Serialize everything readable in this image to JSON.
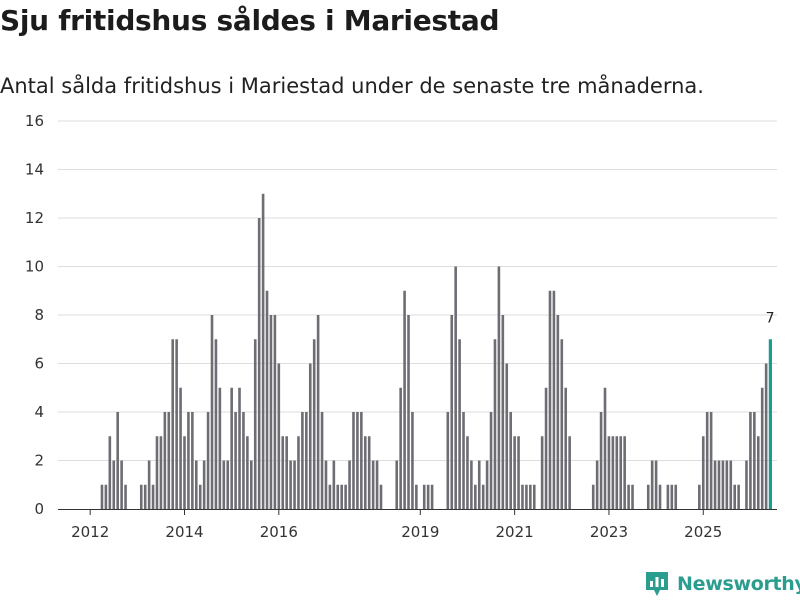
{
  "title": "Sju fritidshus såldes i Mariestad",
  "subtitle": "Antal sålda fritidshus i Mariestad under de senaste tre månaderna.",
  "brand": "Newsworthy",
  "colors": {
    "bar": "#6e6d74",
    "highlight": "#1d9a8c",
    "grid": "#dddddd",
    "axis": "#333333",
    "brand": "#2a9d8f"
  },
  "chart_data": {
    "type": "bar",
    "title": "Sju fritidshus såldes i Mariestad",
    "subtitle": "Antal sålda fritidshus i Mariestad under de senaste tre månaderna.",
    "xlabel": "",
    "ylabel": "",
    "ylim": [
      0,
      16
    ],
    "yticks": [
      0,
      2,
      4,
      6,
      8,
      10,
      12,
      14,
      16
    ],
    "x_start": "2011-07",
    "x_frequency": "monthly",
    "xtick_labels": [
      {
        "label": "2012",
        "month_index": 6
      },
      {
        "label": "2014",
        "month_index": 30
      },
      {
        "label": "2016",
        "month_index": 54
      },
      {
        "label": "2019",
        "month_index": 90
      },
      {
        "label": "2021",
        "month_index": 114
      },
      {
        "label": "2023",
        "month_index": 138
      },
      {
        "label": "2025",
        "month_index": 162
      }
    ],
    "values": [
      0,
      0,
      0,
      0,
      0,
      0,
      0,
      0,
      0,
      1,
      1,
      3,
      2,
      4,
      2,
      1,
      0,
      0,
      0,
      1,
      1,
      2,
      1,
      3,
      3,
      4,
      4,
      7,
      7,
      5,
      3,
      4,
      4,
      2,
      1,
      2,
      4,
      8,
      7,
      5,
      2,
      2,
      5,
      4,
      5,
      4,
      3,
      2,
      7,
      12,
      13,
      9,
      8,
      8,
      6,
      3,
      3,
      2,
      2,
      3,
      4,
      4,
      6,
      7,
      8,
      4,
      2,
      1,
      2,
      1,
      1,
      1,
      2,
      4,
      4,
      4,
      3,
      3,
      2,
      2,
      1,
      0,
      0,
      0,
      2,
      5,
      9,
      8,
      4,
      1,
      0,
      1,
      1,
      1,
      0,
      0,
      0,
      4,
      8,
      10,
      7,
      4,
      3,
      2,
      1,
      2,
      1,
      2,
      4,
      7,
      10,
      8,
      6,
      4,
      3,
      3,
      1,
      1,
      1,
      1,
      0,
      3,
      5,
      9,
      9,
      8,
      7,
      5,
      3,
      0,
      0,
      0,
      0,
      0,
      1,
      2,
      4,
      5,
      3,
      3,
      3,
      3,
      3,
      1,
      1,
      0,
      0,
      0,
      1,
      2,
      2,
      1,
      0,
      1,
      1,
      1,
      0,
      0,
      0,
      0,
      0,
      1,
      3,
      4,
      4,
      2,
      2,
      2,
      2,
      2,
      1,
      1,
      0,
      2,
      4,
      4,
      3,
      5,
      6,
      7
    ],
    "highlight": {
      "index": 179,
      "value": 7,
      "label": "7"
    }
  }
}
